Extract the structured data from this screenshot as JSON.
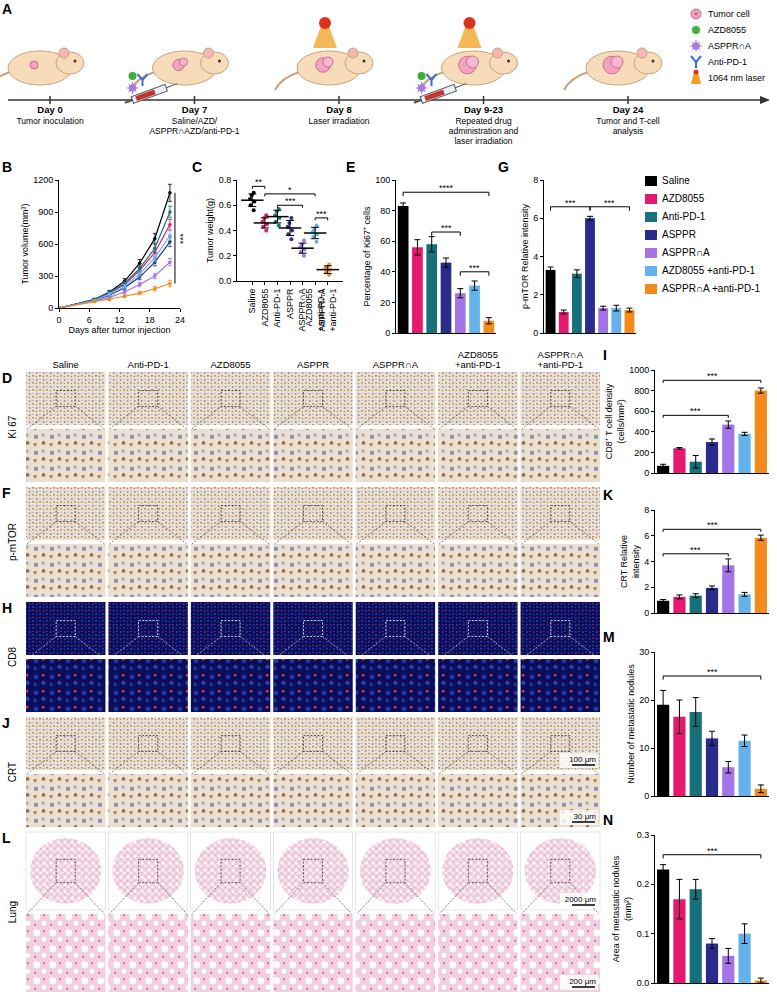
{
  "schematic": {
    "panel": "A",
    "timeline": [
      {
        "day": "Day 0",
        "event": "Tumor inoculation"
      },
      {
        "day": "Day 7",
        "event": "Saline/AZD/ASPPR∩AZD/anti-PD-1"
      },
      {
        "day": "Day 8",
        "event": "Laser irradiation"
      },
      {
        "day": "Day 9-23",
        "event": "Repeated drug administration and laser irradiation"
      },
      {
        "day": "Day 24",
        "event": "Tumor and T-cell analysis"
      }
    ],
    "legend": [
      {
        "label": "Tumor cell",
        "marker": "tumor",
        "color": "#f4a3c0"
      },
      {
        "label": "AZD8055",
        "marker": "drug",
        "color": "#3fae3a"
      },
      {
        "label": "ASPPR∩A",
        "marker": "nanoparticle",
        "color": "#a77be0"
      },
      {
        "label": "Anti-PD-1",
        "marker": "antibody",
        "color": "#3a6fd0"
      },
      {
        "label": "1064 nm laser",
        "marker": "laser",
        "color": "#f0a020"
      }
    ]
  },
  "image_panels": {
    "column_headers": [
      "Saline",
      "Anti-PD-1",
      "AZD8055",
      "ASPPR",
      "ASPPR∩A",
      "AZD8055 +anti-PD-1",
      "ASPPR∩A +anti-PD-1"
    ],
    "rows": [
      {
        "panel": "D",
        "label": "Ki 67",
        "style": "ihc"
      },
      {
        "panel": "F",
        "label": "p-mTOR",
        "style": "ihc"
      },
      {
        "panel": "H",
        "label": "CD8",
        "style": "fluorescence"
      },
      {
        "panel": "J",
        "label": "CRT",
        "style": "ihc",
        "scale_bars": [
          "100 μm",
          "30 μm"
        ]
      },
      {
        "panel": "L",
        "label": "Lung",
        "style": "he",
        "scale_bars": [
          "2000 μm",
          "200 μm"
        ]
      }
    ]
  },
  "chart_data": [
    {
      "panel": "B",
      "type": "line",
      "x_title": "Days after tumor injection",
      "y_title": "Tumor volume(mm³)",
      "x": [
        0,
        7,
        10,
        13,
        16,
        19,
        22
      ],
      "xlim": [
        0,
        24
      ],
      "xticks": [
        0,
        6,
        12,
        18,
        24
      ],
      "ylim": [
        0,
        1200
      ],
      "yticks": [
        0,
        300,
        600,
        900,
        1200
      ],
      "legend": "right",
      "series": [
        {
          "name": "Saline",
          "color": "#000000",
          "values": [
            0,
            80,
            150,
            250,
            420,
            650,
            1080
          ],
          "errors": [
            0,
            10,
            15,
            25,
            35,
            50,
            80
          ]
        },
        {
          "name": "AZD8055",
          "color": "#e6196f",
          "values": [
            0,
            75,
            140,
            220,
            350,
            520,
            780
          ],
          "errors": [
            0,
            10,
            15,
            20,
            30,
            40,
            50
          ]
        },
        {
          "name": "Anti-PD-1",
          "color": "#17707a",
          "values": [
            0,
            80,
            145,
            230,
            370,
            560,
            900
          ],
          "errors": [
            0,
            10,
            15,
            20,
            30,
            45,
            55
          ]
        },
        {
          "name": "ASPPR",
          "color": "#2a2c8c",
          "values": [
            0,
            70,
            120,
            190,
            290,
            430,
            620
          ],
          "errors": [
            0,
            8,
            12,
            18,
            25,
            35,
            45
          ]
        },
        {
          "name": "ASPPR∩A",
          "color": "#a374e6",
          "values": [
            0,
            65,
            100,
            150,
            220,
            300,
            430
          ],
          "errors": [
            0,
            8,
            10,
            15,
            20,
            25,
            35
          ]
        },
        {
          "name": "AZD8055 +anti-PD-1",
          "color": "#63b3ea",
          "values": [
            0,
            70,
            130,
            200,
            320,
            470,
            680
          ],
          "errors": [
            0,
            8,
            12,
            20,
            28,
            35,
            45
          ]
        },
        {
          "name": "ASPPR∩A +anti-PD-1",
          "color": "#f28a1c",
          "values": [
            0,
            60,
            80,
            110,
            140,
            180,
            230
          ],
          "errors": [
            0,
            8,
            10,
            12,
            15,
            20,
            30
          ]
        }
      ],
      "comparisons": [
        {
          "x": 23,
          "y0": 230,
          "y1": 1080,
          "label": "***"
        }
      ]
    },
    {
      "panel": "C",
      "type": "scatter",
      "y_title": "Tumor weight(g)",
      "categories": [
        "Saline",
        "AZD8055",
        "Anti-PD-1",
        "ASPPR",
        "ASPPR∩A",
        "AZD8055 +anti-PD-1",
        "ASPPR∩A +anti-PD-1"
      ],
      "colors": [
        "#000000",
        "#e6196f",
        "#17707a",
        "#2a2c8c",
        "#a374e6",
        "#63b3ea",
        "#f28a1c"
      ],
      "points": [
        [
          0.56,
          0.6,
          0.63,
          0.65,
          0.68,
          0.7
        ],
        [
          0.4,
          0.43,
          0.45,
          0.47,
          0.5,
          0.52
        ],
        [
          0.44,
          0.47,
          0.5,
          0.52,
          0.55,
          0.57
        ],
        [
          0.33,
          0.37,
          0.4,
          0.43,
          0.46,
          0.5
        ],
        [
          0.2,
          0.23,
          0.25,
          0.27,
          0.29,
          0.32
        ],
        [
          0.31,
          0.35,
          0.37,
          0.39,
          0.41,
          0.44
        ],
        [
          0.05,
          0.07,
          0.09,
          0.1,
          0.11,
          0.13
        ]
      ],
      "values": [
        0.64,
        0.46,
        0.51,
        0.42,
        0.26,
        0.38,
        0.09
      ],
      "errors": [
        0.05,
        0.04,
        0.05,
        0.06,
        0.04,
        0.045,
        0.03
      ],
      "ylim": [
        0,
        0.8
      ],
      "yticks": [
        {
          "value": 0,
          "label": "0.0"
        },
        0.2,
        0.4,
        0.6,
        0.8
      ],
      "comparisons": [
        {
          "from": "Saline",
          "to": "AZD8055",
          "y": 0.75,
          "label": "**"
        },
        {
          "from": "AZD8055",
          "to": "AZD8055 +anti-PD-1",
          "y": 0.69,
          "label": "*"
        },
        {
          "from": "Anti-PD-1",
          "to": "ASPPR∩A",
          "y": 0.6,
          "label": "***"
        },
        {
          "from": "AZD8055 +anti-PD-1",
          "to": "ASPPR∩A +anti-PD-1",
          "y": 0.5,
          "label": "***"
        }
      ]
    },
    {
      "panel": "E",
      "type": "bar",
      "y_title": "Percentage of Ki67⁺ cells",
      "categories": [
        "Saline",
        "AZD8055",
        "Anti-PD-1",
        "ASPPR",
        "ASPPR∩A",
        "AZD8055 +anti-PD-1",
        "ASPPR∩A +anti-PD-1"
      ],
      "colors": [
        "#000000",
        "#e6196f",
        "#17707a",
        "#2a2c8c",
        "#a374e6",
        "#63b3ea",
        "#f28a1c"
      ],
      "values": [
        83,
        56,
        58,
        46,
        26,
        31,
        8
      ],
      "errors": [
        2,
        5,
        5,
        3,
        3,
        3,
        2
      ],
      "ylim": [
        0,
        100
      ],
      "yticks": [
        0,
        20,
        40,
        60,
        80,
        100
      ],
      "tick_labels": "y",
      "comparisons": [
        {
          "from": "Saline",
          "to": "ASPPR∩A +anti-PD-1",
          "y": 92,
          "label": "****"
        },
        {
          "from": "Anti-PD-1",
          "to": "ASPPR∩A",
          "y": 66,
          "label": "***"
        },
        {
          "from": "ASPPR∩A",
          "to": "ASPPR∩A +anti-PD-1",
          "y": 40,
          "label": "***"
        }
      ]
    },
    {
      "panel": "G",
      "type": "bar",
      "y_title": "p-mTOR Relative intensity",
      "categories": [
        "Saline",
        "AZD8055",
        "Anti-PD-1",
        "ASPPR",
        "ASPPR∩A",
        "AZD8055 +anti-PD-1",
        "ASPPR∩A +anti-PD-1"
      ],
      "colors": [
        "#000000",
        "#e6196f",
        "#17707a",
        "#2a2c8c",
        "#a374e6",
        "#63b3ea",
        "#f28a1c"
      ],
      "values": [
        3.3,
        1.1,
        3.1,
        6.0,
        1.3,
        1.3,
        1.2
      ],
      "errors": [
        0.15,
        0.1,
        0.2,
        0.1,
        0.1,
        0.15,
        0.1
      ],
      "ylim": [
        0,
        8
      ],
      "yticks": [
        0,
        2,
        4,
        6,
        8
      ],
      "tick_labels": "y",
      "comparisons": [
        {
          "from": "Saline",
          "to": "ASPPR",
          "y": 6.6,
          "label": "***"
        },
        {
          "from": "ASPPR",
          "to": "ASPPR∩A +anti-PD-1",
          "y": 6.6,
          "label": "***"
        }
      ]
    },
    {
      "panel": "I",
      "type": "bar",
      "y_title": "CD8⁺ T cell density (cells/mm²)",
      "categories": [
        "Saline",
        "AZD8055",
        "Anti-PD-1",
        "ASPPR",
        "ASPPR∩A",
        "AZD8055 +anti-PD-1",
        "ASPPR∩A +anti-PD-1"
      ],
      "colors": [
        "#000000",
        "#e6196f",
        "#17707a",
        "#2a2c8c",
        "#a374e6",
        "#63b3ea",
        "#f28a1c"
      ],
      "values": [
        70,
        240,
        110,
        300,
        470,
        380,
        800
      ],
      "errors": [
        15,
        8,
        60,
        30,
        35,
        15,
        25
      ],
      "ylim": [
        0,
        1000
      ],
      "yticks": [
        0,
        200,
        400,
        600,
        800,
        1000
      ],
      "tick_labels": "y",
      "comparisons": [
        {
          "from": "Saline",
          "to": "ASPPR∩A +anti-PD-1",
          "y": 900,
          "label": "***"
        },
        {
          "from": "Saline",
          "to": "ASPPR∩A",
          "y": 560,
          "label": "***"
        }
      ]
    },
    {
      "panel": "K",
      "type": "bar",
      "y_title": "CRT Relative intensity",
      "categories": [
        "Saline",
        "AZD8055",
        "Anti-PD-1",
        "ASPPR",
        "ASPPR∩A",
        "AZD8055 +anti-PD-1",
        "ASPPR∩A +anti-PD-1"
      ],
      "colors": [
        "#000000",
        "#e6196f",
        "#17707a",
        "#2a2c8c",
        "#a374e6",
        "#63b3ea",
        "#f28a1c"
      ],
      "values": [
        0.95,
        1.25,
        1.35,
        1.95,
        3.7,
        1.45,
        5.85
      ],
      "errors": [
        0.1,
        0.15,
        0.15,
        0.15,
        0.5,
        0.15,
        0.2
      ],
      "ylim": [
        0,
        8
      ],
      "yticks": [
        0,
        2,
        4,
        6,
        8
      ],
      "tick_labels": "y",
      "comparisons": [
        {
          "from": "Saline",
          "to": "ASPPR∩A +anti-PD-1",
          "y": 6.5,
          "label": "***"
        },
        {
          "from": "Saline",
          "to": "ASPPR∩A",
          "y": 4.6,
          "label": "***"
        }
      ]
    },
    {
      "panel": "M",
      "type": "bar",
      "y_title": "Number of metastatic nodules",
      "categories": [
        "Saline",
        "AZD8055",
        "Anti-PD-1",
        "ASPPR",
        "ASPPR∩A",
        "AZD8055 +anti-PD-1",
        "ASPPR∩A +anti-PD-1"
      ],
      "colors": [
        "#000000",
        "#e6196f",
        "#17707a",
        "#2a2c8c",
        "#a374e6",
        "#63b3ea",
        "#f28a1c"
      ],
      "values": [
        19,
        16.5,
        17.5,
        12,
        6,
        11.5,
        1.5
      ],
      "errors": [
        3,
        3.5,
        3,
        1.5,
        1.2,
        1.2,
        0.8
      ],
      "ylim": [
        0,
        30
      ],
      "yticks": [
        0,
        10,
        20,
        30
      ],
      "tick_labels": "y",
      "comparisons": [
        {
          "from": "Saline",
          "to": "ASPPR∩A +anti-PD-1",
          "y": 25,
          "label": "***"
        }
      ]
    },
    {
      "panel": "N",
      "type": "bar",
      "y_title": "Area of metastatic nodules (mm²)",
      "categories": [
        "Saline",
        "AZD8055",
        "Anti-PD-1",
        "ASPPR",
        "ASPPR∩A",
        "AZD8055 +anti-PD-1",
        "ASPPR∩A +anti-PD-1"
      ],
      "colors": [
        "#000000",
        "#e6196f",
        "#17707a",
        "#2a2c8c",
        "#a374e6",
        "#63b3ea",
        "#f28a1c"
      ],
      "values": [
        0.23,
        0.17,
        0.19,
        0.08,
        0.055,
        0.1,
        0.005
      ],
      "errors": [
        0.01,
        0.04,
        0.02,
        0.01,
        0.015,
        0.02,
        0.005
      ],
      "ylim": [
        0,
        0.3
      ],
      "yticks": [
        {
          "value": 0,
          "label": "0.0"
        },
        0.1,
        0.2,
        0.3
      ],
      "tick_labels": "y",
      "comparisons": [
        {
          "from": "Saline",
          "to": "ASPPR∩A +anti-PD-1",
          "y": 0.26,
          "label": "***"
        }
      ]
    }
  ]
}
